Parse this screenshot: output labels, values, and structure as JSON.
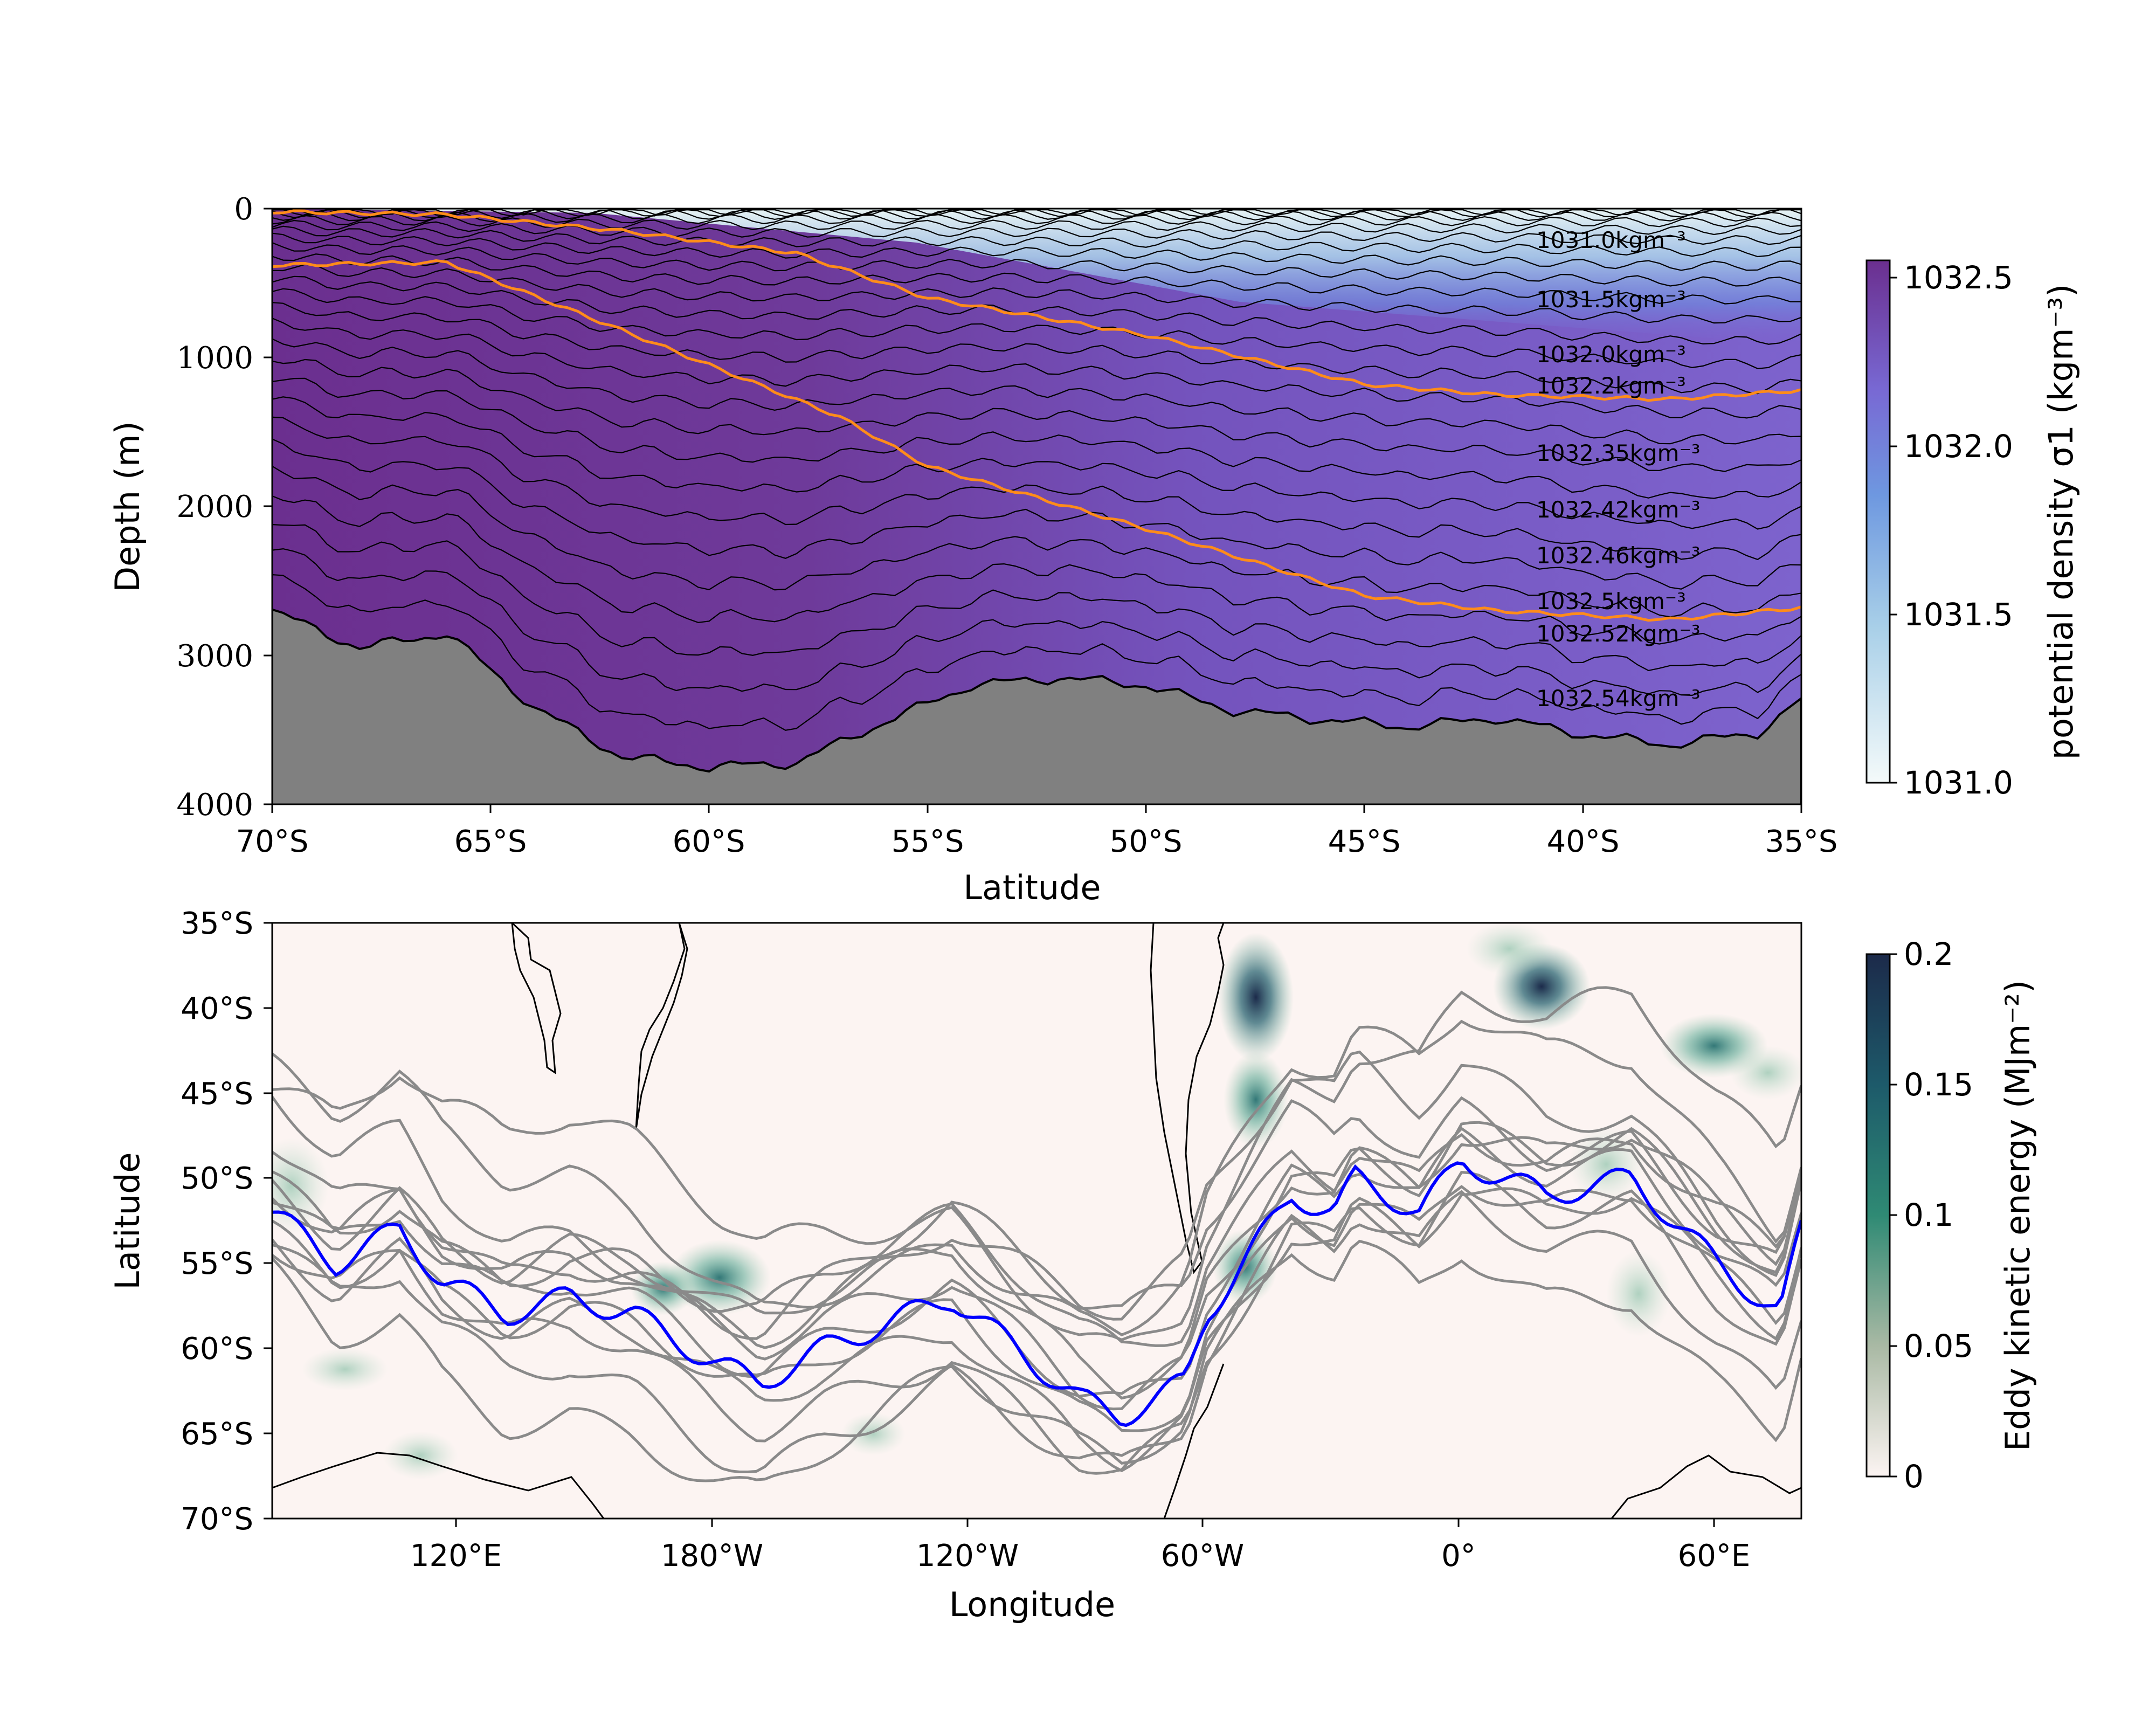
{
  "colors": {
    "density_light": "#e8f4f4",
    "density_mid_light": "#6f99df",
    "density_mid": "#7b66d2",
    "density_dark": "#6b2f8f",
    "bathymetry": "#808080",
    "isopycnal_line": "#000000",
    "highlight_isopycnal": "#ff8c1a",
    "eke_background": "#fcf4f2",
    "eke_high": "#1c2a4a",
    "eke_mid": "#2a8a78",
    "ssh_contour": "#8a8a8a",
    "front_line": "#0000ff"
  },
  "chart_data": [
    {
      "type": "contour",
      "id": "density-section",
      "xlabel": "Latitude",
      "ylabel": "Depth (m)",
      "xlim": [
        -70,
        -35
      ],
      "ylim": [
        4000,
        0
      ],
      "x_ticks": [
        "70°S",
        "65°S",
        "60°S",
        "55°S",
        "50°S",
        "45°S",
        "40°S",
        "35°S"
      ],
      "y_ticks": [
        "0",
        "1000",
        "2000",
        "3000",
        "4000"
      ],
      "colorbar": {
        "label": "potential density σ1 (kgm⁻³)",
        "ticks": [
          "1031.0",
          "1031.5",
          "1032.0",
          "1032.5"
        ],
        "range": [
          1031.0,
          1032.55
        ]
      },
      "contour_labels": [
        "1031.0kgm⁻³",
        "1031.5kgm⁻³",
        "1032.0kgm⁻³",
        "1032.2kgm⁻³",
        "1032.35kgm⁻³",
        "1032.42kgm⁻³",
        "1032.46kgm⁻³",
        "1032.5kgm⁻³",
        "1032.52kgm⁻³",
        "1032.54kgm⁻³"
      ],
      "bathymetry_depth": {
        "lat": [
          -70,
          -68,
          -66,
          -64,
          -62,
          -60,
          -58,
          -56,
          -54,
          -52,
          -50,
          -48,
          -46,
          -44,
          -42,
          -40,
          -38,
          -36,
          -35
        ],
        "depth": [
          2700,
          2950,
          2850,
          3350,
          3680,
          3750,
          3720,
          3450,
          3200,
          3150,
          3200,
          3370,
          3430,
          3480,
          3420,
          3530,
          3600,
          3520,
          3300
        ]
      },
      "highlight_isopycnals": [
        {
          "lat": [
            -70,
            -66,
            -62,
            -58,
            -55,
            -50,
            -45,
            -42,
            -38,
            -35
          ],
          "depth": [
            20,
            40,
            150,
            300,
            600,
            850,
            1180,
            1250,
            1280,
            1220
          ]
        },
        {
          "lat": [
            -70,
            -66,
            -63,
            -60,
            -57,
            -55,
            -50,
            -45,
            -42,
            -38,
            -35
          ],
          "depth": [
            380,
            360,
            700,
            1050,
            1400,
            1730,
            2150,
            2600,
            2700,
            2760,
            2680
          ]
        }
      ]
    },
    {
      "type": "heatmap",
      "id": "eke-map",
      "xlabel": "Longitude",
      "ylabel": "Latitude",
      "x_ticks": [
        "120°E",
        "180°W",
        "120°W",
        "60°W",
        "0°",
        "60°E"
      ],
      "y_ticks": [
        "35°S",
        "40°S",
        "45°S",
        "50°S",
        "55°S",
        "60°S",
        "65°S",
        "70°S"
      ],
      "colorbar": {
        "label": "Eddy kinetic energy (MJm⁻²)",
        "ticks": [
          "0",
          "0.05",
          "0.1",
          "0.15",
          "0.2"
        ],
        "range": [
          0,
          0.2
        ]
      },
      "front_line": {
        "lon": [
          0,
          15,
          30,
          40,
          55,
          70,
          85,
          105,
          115,
          130,
          150,
          160,
          170,
          190,
          200,
          215,
          220,
          240,
          250,
          255,
          270,
          280,
          300,
          320,
          340,
          355,
          360
        ],
        "lat": [
          -52,
          -55,
          -53,
          -56,
          -58,
          -57,
          -58,
          -61,
          -62,
          -60,
          -58,
          -57,
          -59,
          -63,
          -64,
          -62,
          -58,
          -51,
          -52,
          -50,
          -52,
          -49,
          -51,
          -50,
          -55,
          -58,
          -53
        ]
      }
    }
  ]
}
